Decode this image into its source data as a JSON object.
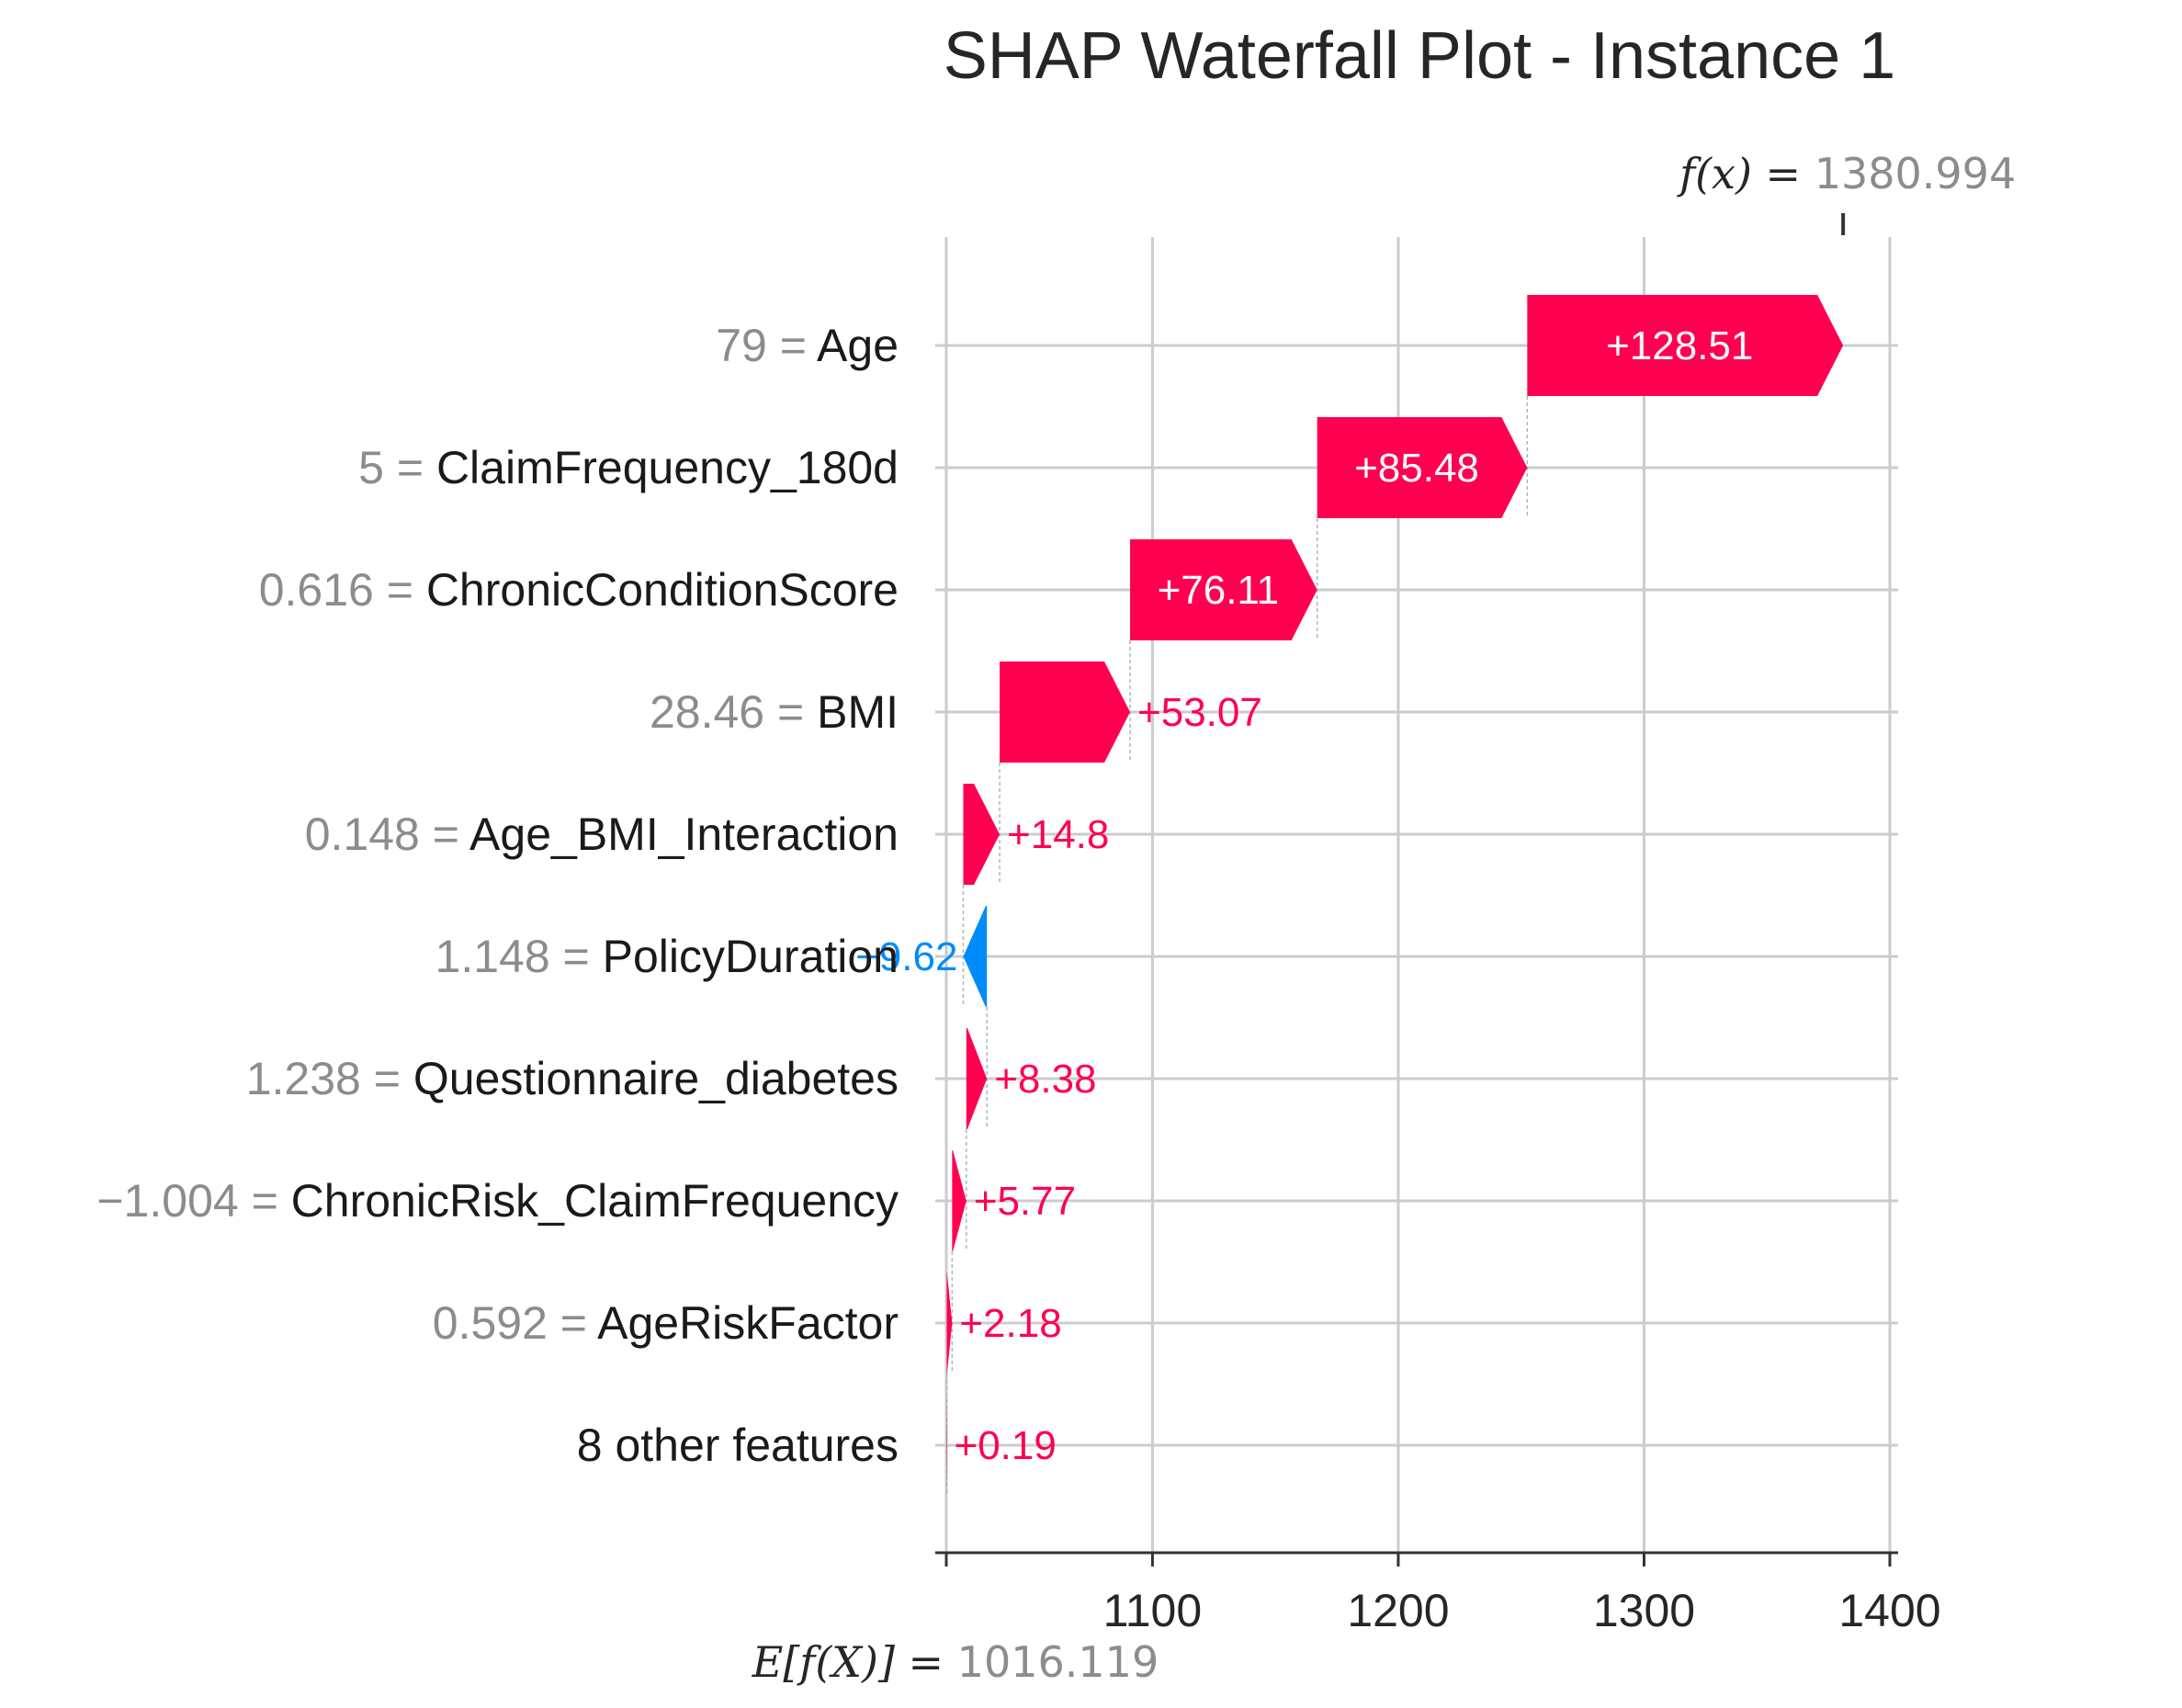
{
  "chart_data": {
    "type": "bar",
    "subtype": "waterfall",
    "title": "SHAP Waterfall Plot - Instance 1",
    "base_value": 1016.119,
    "base_label": "E[f(X)] = ",
    "base_value_text": "1016.119",
    "output_value": 1380.994,
    "output_label": "f(x) = ",
    "output_value_text": "1380.994",
    "xlim": [
      1016.119,
      1400
    ],
    "xticks": [
      1100,
      1200,
      1300,
      1400
    ],
    "xtick_labels": [
      "1100",
      "1200",
      "1300",
      "1400"
    ],
    "colors": {
      "positive": "#ff0051",
      "negative": "#008bfb",
      "grid": "#cccccc"
    },
    "features": [
      {
        "value": "79 = ",
        "name": "Age",
        "shap": 128.51,
        "label": "+128.51"
      },
      {
        "value": "5 = ",
        "name": "ClaimFrequency_180d",
        "shap": 85.48,
        "label": "+85.48"
      },
      {
        "value": "0.616 = ",
        "name": "ChronicConditionScore",
        "shap": 76.11,
        "label": "+76.11"
      },
      {
        "value": "28.46 = ",
        "name": "BMI",
        "shap": 53.07,
        "label": "+53.07"
      },
      {
        "value": "0.148 = ",
        "name": "Age_BMI_Interaction",
        "shap": 14.8,
        "label": "+14.8"
      },
      {
        "value": "1.148 = ",
        "name": "PolicyDuration",
        "shap": -9.62,
        "label": "−9.62"
      },
      {
        "value": "1.238 = ",
        "name": "Questionnaire_diabetes",
        "shap": 8.38,
        "label": "+8.38"
      },
      {
        "value": "−1.004 = ",
        "name": "ChronicRisk_ClaimFrequency",
        "shap": 5.77,
        "label": "+5.77"
      },
      {
        "value": "0.592 = ",
        "name": "AgeRiskFactor",
        "shap": 2.18,
        "label": "+2.18"
      },
      {
        "value": "",
        "name": "8 other features",
        "shap": 0.19,
        "label": "+0.19"
      }
    ]
  }
}
